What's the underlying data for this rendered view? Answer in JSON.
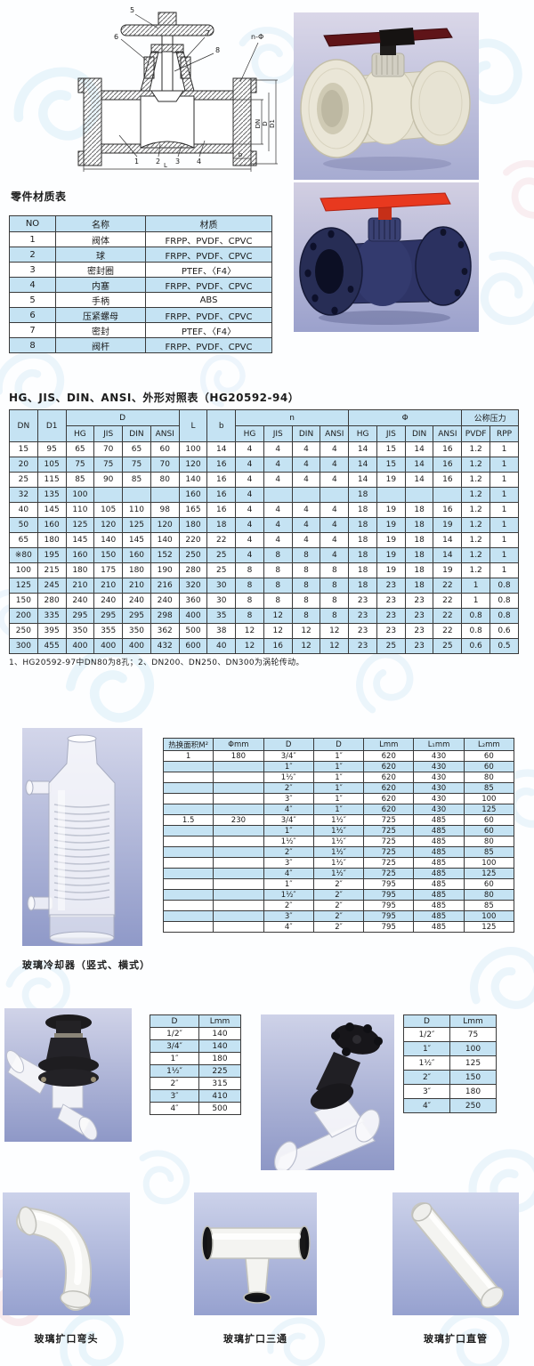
{
  "titles": {
    "parts": "零件材质表",
    "dims": "HG、JIS、DIN、ANSI、外形对照表（HG20592-94）",
    "footnote": "1、HG20592-97中DN80为8孔；2、DN200、DN250、DN300为涡轮传动。",
    "cooler_caption": "玻璃冷却器（竖式、横式）",
    "elbow_caption": "玻璃扩口弯头",
    "tee_caption": "玻璃扩口三通",
    "straight_caption": "玻璃扩口直管"
  },
  "parts_table": {
    "headers": [
      "NO",
      "名称",
      "材质"
    ],
    "rows": [
      [
        "1",
        "阀体",
        "FRPP、PVDF、CPVC"
      ],
      [
        "2",
        "球",
        "FRPP、PVDF、CPVC"
      ],
      [
        "3",
        "密封圈",
        "PTEF、〈F4〉"
      ],
      [
        "4",
        "内塞",
        "FRPP、PVDF、CPVC"
      ],
      [
        "5",
        "手柄",
        "ABS"
      ],
      [
        "6",
        "压紧螺母",
        "FRPP、PVDF、CPVC"
      ],
      [
        "7",
        "密封",
        "PTEF、〈F4〉"
      ],
      [
        "8",
        "阀杆",
        "FRPP、PVDF、CPVC"
      ]
    ]
  },
  "dim_table": {
    "h": {
      "dn": "DN",
      "d1": "D1",
      "d": "D",
      "l": "L",
      "b": "b",
      "n": "n",
      "phi": "Φ",
      "pn": "公称压力",
      "hg": "HG",
      "jis": "JIS",
      "din": "DIN",
      "ansi": "ANSI",
      "pvdf": "PVDF",
      "rpp": "RPP"
    },
    "rows": [
      [
        "15",
        "95",
        "65",
        "70",
        "65",
        "60",
        "100",
        "14",
        "4",
        "4",
        "4",
        "4",
        "14",
        "15",
        "14",
        "16",
        "1.2",
        "1"
      ],
      [
        "20",
        "105",
        "75",
        "75",
        "75",
        "70",
        "120",
        "16",
        "4",
        "4",
        "4",
        "4",
        "14",
        "15",
        "14",
        "16",
        "1.2",
        "1"
      ],
      [
        "25",
        "115",
        "85",
        "90",
        "85",
        "80",
        "140",
        "16",
        "4",
        "4",
        "4",
        "4",
        "14",
        "19",
        "14",
        "16",
        "1.2",
        "1"
      ],
      [
        "32",
        "135",
        "100",
        "",
        "",
        "",
        "160",
        "16",
        "4",
        "",
        "",
        "",
        "18",
        "",
        "",
        "",
        "1.2",
        "1"
      ],
      [
        "40",
        "145",
        "110",
        "105",
        "110",
        "98",
        "165",
        "16",
        "4",
        "4",
        "4",
        "4",
        "18",
        "19",
        "18",
        "16",
        "1.2",
        "1"
      ],
      [
        "50",
        "160",
        "125",
        "120",
        "125",
        "120",
        "180",
        "18",
        "4",
        "4",
        "4",
        "4",
        "18",
        "19",
        "18",
        "19",
        "1.2",
        "1"
      ],
      [
        "65",
        "180",
        "145",
        "140",
        "145",
        "140",
        "220",
        "22",
        "4",
        "4",
        "4",
        "4",
        "18",
        "19",
        "18",
        "14",
        "1.2",
        "1"
      ],
      [
        "※80",
        "195",
        "160",
        "150",
        "160",
        "152",
        "250",
        "25",
        "4",
        "8",
        "8",
        "4",
        "18",
        "19",
        "18",
        "14",
        "1.2",
        "1"
      ],
      [
        "100",
        "215",
        "180",
        "175",
        "180",
        "190",
        "280",
        "25",
        "8",
        "8",
        "8",
        "8",
        "18",
        "19",
        "18",
        "19",
        "1.2",
        "1"
      ],
      [
        "125",
        "245",
        "210",
        "210",
        "210",
        "216",
        "320",
        "30",
        "8",
        "8",
        "8",
        "8",
        "18",
        "23",
        "18",
        "22",
        "1",
        "0.8"
      ],
      [
        "150",
        "280",
        "240",
        "240",
        "240",
        "240",
        "360",
        "30",
        "8",
        "8",
        "8",
        "8",
        "23",
        "23",
        "23",
        "22",
        "1",
        "0.8"
      ],
      [
        "200",
        "335",
        "295",
        "295",
        "295",
        "298",
        "400",
        "35",
        "8",
        "12",
        "8",
        "8",
        "23",
        "23",
        "23",
        "22",
        "0.8",
        "0.8"
      ],
      [
        "250",
        "395",
        "350",
        "355",
        "350",
        "362",
        "500",
        "38",
        "12",
        "12",
        "12",
        "12",
        "23",
        "23",
        "23",
        "22",
        "0.8",
        "0.6"
      ],
      [
        "300",
        "455",
        "400",
        "400",
        "400",
        "432",
        "600",
        "40",
        "12",
        "16",
        "12",
        "12",
        "23",
        "25",
        "23",
        "25",
        "0.6",
        "0.5"
      ]
    ]
  },
  "hx_table": {
    "headers": [
      "热换面积M²",
      "Φmm",
      "D",
      "D",
      "Lmm",
      "L₁mm",
      "L₂mm"
    ],
    "rows": [
      [
        "1",
        "180",
        "3/4″",
        "1″",
        "620",
        "430",
        "60"
      ],
      [
        "",
        "",
        "1″",
        "1″",
        "620",
        "430",
        "60"
      ],
      [
        "",
        "",
        "1½″",
        "1″",
        "620",
        "430",
        "80"
      ],
      [
        "",
        "",
        "2″",
        "1″",
        "620",
        "430",
        "85"
      ],
      [
        "",
        "",
        "3″",
        "1″",
        "620",
        "430",
        "100"
      ],
      [
        "",
        "",
        "4″",
        "1″",
        "620",
        "430",
        "125"
      ],
      [
        "1.5",
        "230",
        "3/4″",
        "1½″",
        "725",
        "485",
        "60"
      ],
      [
        "",
        "",
        "1″",
        "1½″",
        "725",
        "485",
        "60"
      ],
      [
        "",
        "",
        "1½″",
        "1½″",
        "725",
        "485",
        "80"
      ],
      [
        "",
        "",
        "2″",
        "1½″",
        "725",
        "485",
        "85"
      ],
      [
        "",
        "",
        "3″",
        "1½″",
        "725",
        "485",
        "100"
      ],
      [
        "",
        "",
        "4″",
        "1½″",
        "725",
        "485",
        "125"
      ],
      [
        "",
        "",
        "1″",
        "2″",
        "795",
        "485",
        "60"
      ],
      [
        "",
        "",
        "1½″",
        "2″",
        "795",
        "485",
        "80"
      ],
      [
        "",
        "",
        "2″",
        "2″",
        "795",
        "485",
        "85"
      ],
      [
        "",
        "",
        "3″",
        "2″",
        "795",
        "485",
        "100"
      ],
      [
        "",
        "",
        "4″",
        "2″",
        "795",
        "485",
        "125"
      ]
    ]
  },
  "small_table_left": {
    "headers": [
      "D",
      "Lmm"
    ],
    "rows": [
      [
        "1/2″",
        "140"
      ],
      [
        "3/4″",
        "140"
      ],
      [
        "1″",
        "180"
      ],
      [
        "1½″",
        "225"
      ],
      [
        "2″",
        "315"
      ],
      [
        "3″",
        "410"
      ],
      [
        "4″",
        "500"
      ]
    ]
  },
  "small_table_right": {
    "headers": [
      "D",
      "Lmm"
    ],
    "rows": [
      [
        "1/2″",
        "75"
      ],
      [
        "1″",
        "100"
      ],
      [
        "1½″",
        "125"
      ],
      [
        "2″",
        "150"
      ],
      [
        "3″",
        "180"
      ],
      [
        "4″",
        "250"
      ]
    ]
  },
  "drawing": {
    "callouts": {
      "c1": "1",
      "c2": "2",
      "c3": "3",
      "c4": "4",
      "c5": "5",
      "c6": "6",
      "c7": "7",
      "c8": "8"
    },
    "dims": {
      "dn": "DN",
      "d": "D",
      "d1": "D1",
      "l": "L",
      "b": "b",
      "nphi": "n-Φ"
    }
  },
  "colors": {
    "cell_blue": "#c5e3f3",
    "lavender_top": "#d6d3e6",
    "lavender_bottom": "#97a0cb",
    "navy_valve": "#2e3466",
    "red_handle": "#e8391f",
    "dark_red_handle": "#6e1720",
    "cream_valve": "#eae6d7"
  }
}
